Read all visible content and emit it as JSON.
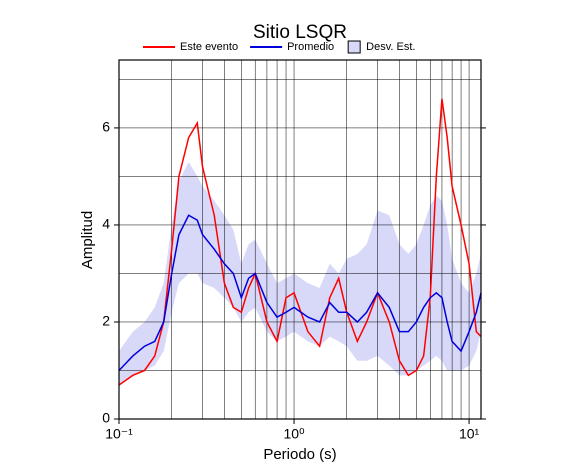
{
  "chart_data": {
    "type": "line",
    "title": "Sitio LSQR",
    "x_label": "Periodo (s)",
    "y_label": "Amplitud",
    "x_scale": "log",
    "xlim": [
      0.1,
      11.7
    ],
    "ylim": [
      0,
      7.4
    ],
    "xticks": [
      {
        "value": 0.1,
        "label": "10⁻¹"
      },
      {
        "value": 1,
        "label": "10⁰"
      },
      {
        "value": 10,
        "label": "10¹"
      }
    ],
    "yticks": [
      0,
      2,
      4,
      6
    ],
    "xgrid": [
      0.1,
      0.2,
      0.3,
      0.4,
      0.5,
      0.6,
      0.7,
      0.8,
      0.9,
      1,
      2,
      3,
      4,
      5,
      6,
      7,
      8,
      9,
      10
    ],
    "ygrid": [
      1,
      2,
      3,
      4,
      5,
      6,
      7
    ],
    "grid": true,
    "legend": "top",
    "x": [
      0.1,
      0.12,
      0.14,
      0.16,
      0.18,
      0.2,
      0.22,
      0.25,
      0.28,
      0.3,
      0.35,
      0.4,
      0.45,
      0.5,
      0.55,
      0.6,
      0.7,
      0.8,
      0.9,
      1.0,
      1.2,
      1.4,
      1.6,
      1.8,
      2.0,
      2.3,
      2.6,
      3.0,
      3.5,
      4,
      4.5,
      5,
      5.5,
      6,
      6.5,
      7,
      7.5,
      8,
      9,
      10,
      11,
      11.7
    ],
    "series": [
      {
        "name": "Este evento",
        "color": "#ff0000",
        "values": [
          0.7,
          0.9,
          1.0,
          1.3,
          2.0,
          3.5,
          5.0,
          5.8,
          6.1,
          5.2,
          4.2,
          2.8,
          2.3,
          2.2,
          2.7,
          3.0,
          2.0,
          1.6,
          2.5,
          2.6,
          1.8,
          1.5,
          2.5,
          2.9,
          2.2,
          1.6,
          2.0,
          2.6,
          2.0,
          1.2,
          0.9,
          1.0,
          1.3,
          2.5,
          5.0,
          6.6,
          5.8,
          4.8,
          4.0,
          3.2,
          1.8,
          1.7
        ]
      },
      {
        "name": "Promedio",
        "color": "#0000dd",
        "values": [
          1.0,
          1.3,
          1.5,
          1.6,
          2.0,
          3.0,
          3.8,
          4.2,
          4.1,
          3.8,
          3.5,
          3.2,
          3.0,
          2.5,
          2.9,
          3.0,
          2.4,
          2.1,
          2.2,
          2.3,
          2.1,
          2.0,
          2.4,
          2.2,
          2.2,
          2.0,
          2.2,
          2.6,
          2.3,
          1.8,
          1.8,
          2.0,
          2.3,
          2.5,
          2.6,
          2.5,
          2.0,
          1.6,
          1.4,
          1.8,
          2.2,
          2.6
        ]
      }
    ],
    "band": {
      "name": "Desv. Est.",
      "color": "#d8d8f8",
      "edge": "#000000",
      "lower": [
        0.7,
        0.9,
        1.0,
        1.1,
        1.4,
        2.2,
        2.8,
        3.0,
        3.0,
        2.8,
        2.7,
        2.5,
        2.3,
        2.0,
        2.2,
        2.3,
        1.8,
        1.6,
        1.7,
        1.8,
        1.6,
        1.5,
        1.7,
        1.6,
        1.5,
        1.2,
        1.2,
        1.3,
        1.1,
        0.9,
        0.9,
        1.0,
        1.1,
        1.2,
        1.3,
        1.2,
        1.0,
        1.0,
        1.0,
        1.1,
        1.4,
        1.8
      ],
      "upper": [
        1.4,
        1.8,
        2.0,
        2.3,
        2.8,
        4.0,
        4.9,
        5.3,
        5.0,
        4.8,
        4.5,
        4.2,
        3.9,
        3.2,
        3.6,
        3.7,
        3.2,
        2.8,
        2.9,
        3.0,
        2.8,
        2.7,
        3.2,
        3.0,
        3.3,
        3.4,
        3.6,
        4.3,
        4.2,
        3.6,
        3.4,
        3.6,
        4.0,
        4.4,
        4.6,
        4.5,
        4.0,
        3.3,
        2.8,
        2.6,
        3.0,
        3.4
      ]
    }
  }
}
